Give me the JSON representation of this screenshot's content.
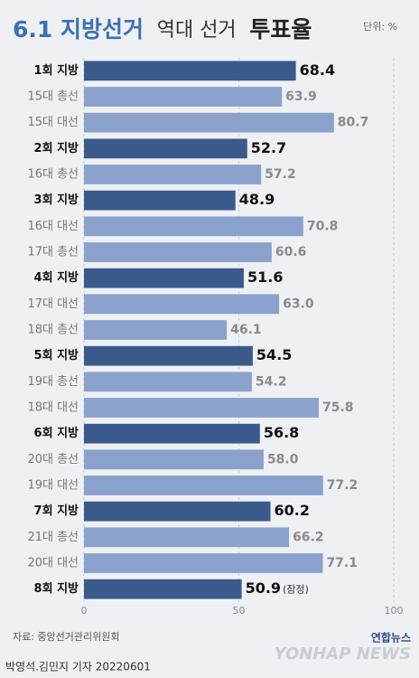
{
  "chart_data": {
    "type": "bar",
    "orientation": "horizontal",
    "title_parts": [
      "6.1 지방선거",
      "역대 선거",
      "투표율"
    ],
    "unit": "단위: %",
    "categories": [
      "1회 지방",
      "15대 총선",
      "15대 대선",
      "2회 지방",
      "16대 총선",
      "3회 지방",
      "16대 대선",
      "17대 총선",
      "4회 지방",
      "17대 대선",
      "18대 총선",
      "5회 지방",
      "19대 총선",
      "18대 대선",
      "6회 지방",
      "20대 총선",
      "19대 대선",
      "7회 지방",
      "21대 총선",
      "20대 대선",
      "8회 지방"
    ],
    "values": [
      68.4,
      63.9,
      80.7,
      52.7,
      57.2,
      48.9,
      70.8,
      60.6,
      51.6,
      63.0,
      46.1,
      54.5,
      54.2,
      75.8,
      56.8,
      58.0,
      77.2,
      60.2,
      66.2,
      77.1,
      50.9
    ],
    "value_labels": [
      "68.4",
      "63.9",
      "80.7",
      "52.7",
      "57.2",
      "48.9",
      "70.8",
      "60.6",
      "51.6",
      "63.0",
      "46.1",
      "54.5",
      "54.2",
      "75.8",
      "56.8",
      "58.0",
      "77.2",
      "60.2",
      "66.2",
      "77.1",
      "50.9"
    ],
    "colors": [
      "#3b5a8c",
      "#8aa2cb",
      "#8aa2cb",
      "#3b5a8c",
      "#8aa2cb",
      "#3b5a8c",
      "#8aa2cb",
      "#8aa2cb",
      "#3b5a8c",
      "#8aa2cb",
      "#8aa2cb",
      "#3b5a8c",
      "#8aa2cb",
      "#8aa2cb",
      "#3b5a8c",
      "#8aa2cb",
      "#8aa2cb",
      "#3b5a8c",
      "#8aa2cb",
      "#8aa2cb",
      "#3b5a8c"
    ],
    "highlight_color": "#3b5a8c",
    "annotation": "(잠정)",
    "xlim": [
      0,
      100
    ],
    "xticks": [
      0,
      50,
      100
    ],
    "grid": true,
    "source": "자료: 중앙선거관리위원회",
    "byline": "박영석.김민지 기자 20220601",
    "logo": "연합뉴스",
    "watermark": "YONHAP NEWS"
  }
}
